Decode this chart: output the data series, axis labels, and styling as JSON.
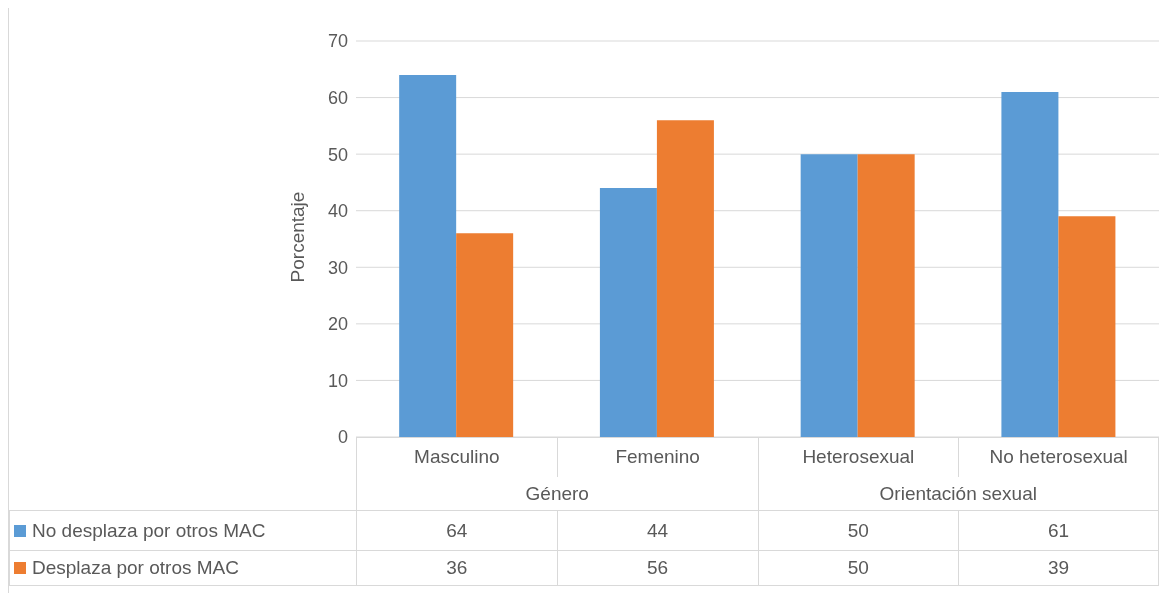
{
  "chart_data": {
    "type": "bar",
    "ylabel": "Porcentaje",
    "categories": [
      "Masculino",
      "Femenino",
      "Heterosexual",
      "No heterosexual"
    ],
    "series": [
      {
        "name": "No desplaza por otros MAC",
        "color": "#5b9bd5",
        "values": [
          64,
          44,
          50,
          61
        ]
      },
      {
        "name": "Desplaza por otros MAC",
        "color": "#ed7d31",
        "values": [
          36,
          56,
          50,
          39
        ]
      }
    ],
    "annotations": [
      "Género",
      "Orientación sexual"
    ],
    "ylim": [
      0,
      70
    ],
    "yticks": [
      0,
      10,
      20,
      30,
      40,
      50,
      60,
      70
    ],
    "grid": "y",
    "legend": "bottom",
    "data_labels": true
  }
}
